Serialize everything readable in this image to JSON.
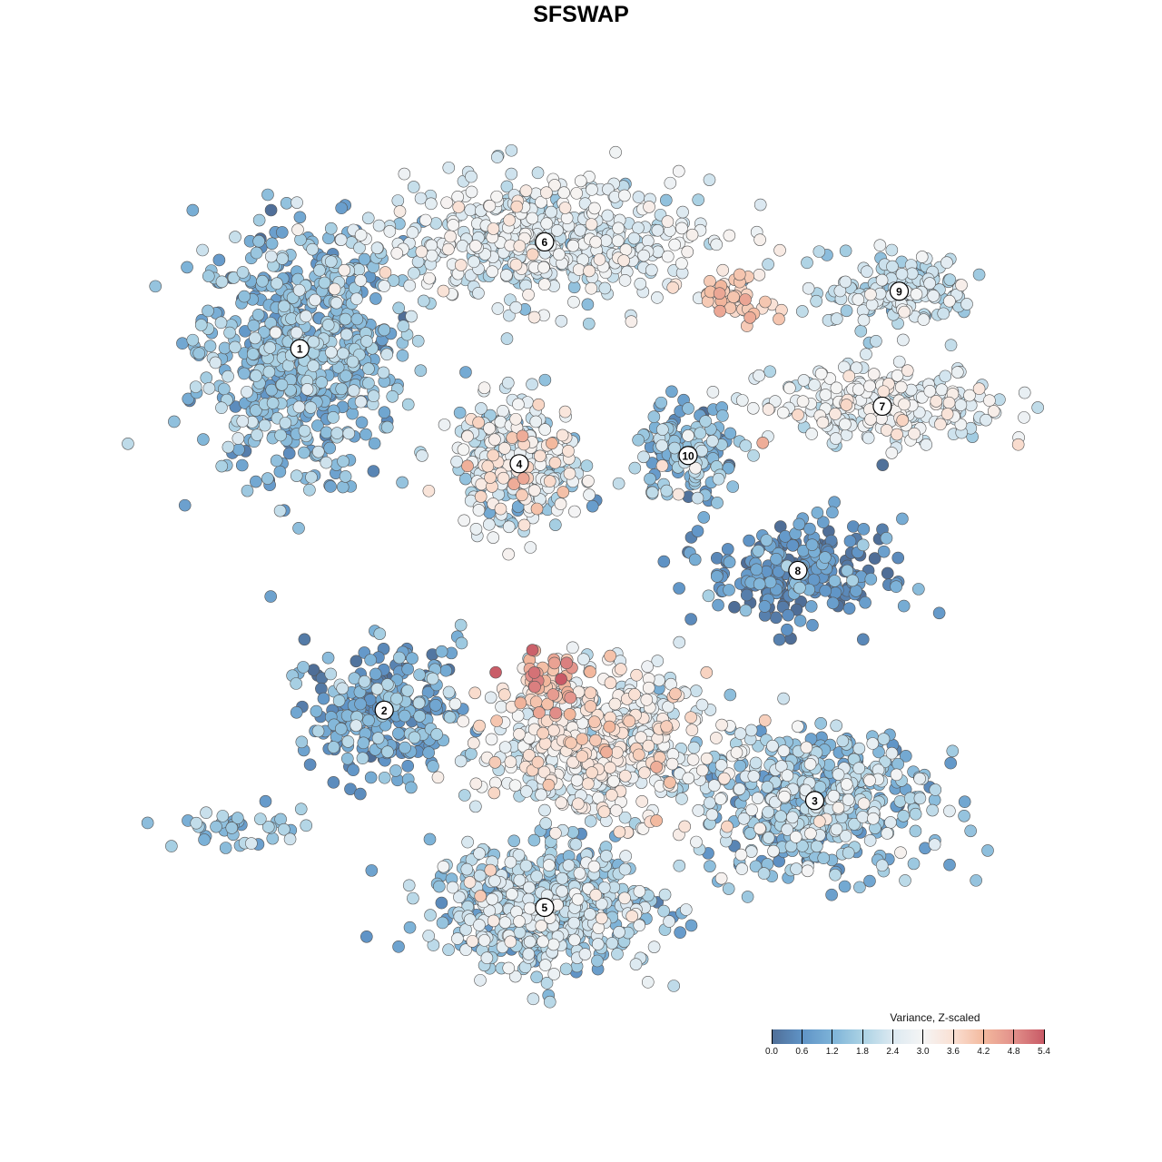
{
  "chart_data": {
    "type": "scatter",
    "title": "SFSWAP",
    "xlabel": "",
    "ylabel": "",
    "axes_visible": false,
    "grid": false,
    "xlim": [
      -50,
      50
    ],
    "ylim": [
      -50,
      50
    ],
    "color_scale": {
      "title": "Variance, Z-scaled",
      "range": [
        0.0,
        5.4
      ],
      "ticks": [
        "0.0",
        "0.6",
        "1.2",
        "1.8",
        "2.4",
        "3.0",
        "3.6",
        "4.2",
        "4.8",
        "5.4"
      ],
      "colors": [
        "#4f6e97",
        "#5f93c6",
        "#7db3d8",
        "#abd2e4",
        "#dce9f1",
        "#f5f5f5",
        "#fae0d3",
        "#f3b99e",
        "#e2908a",
        "#c85a66"
      ],
      "placement": "bottom-right"
    },
    "clusters": [
      {
        "label": "1",
        "x": -36,
        "y": 28,
        "sx": 8,
        "sy": 10,
        "n": 650,
        "mean": 1.3,
        "sd": 0.5
      },
      {
        "label": "6",
        "x": -7,
        "y": 41,
        "sx": 13,
        "sy": 5,
        "n": 520,
        "mean": 2.4,
        "sd": 0.5
      },
      {
        "label": "9",
        "x": 35,
        "y": 35,
        "sx": 6,
        "sy": 3,
        "n": 160,
        "mean": 2.1,
        "sd": 0.4
      },
      {
        "label": "7",
        "x": 33,
        "y": 21,
        "sx": 9,
        "sy": 3,
        "n": 260,
        "mean": 2.6,
        "sd": 0.5
      },
      {
        "label": "4",
        "x": -10,
        "y": 14,
        "sx": 5,
        "sy": 5,
        "n": 300,
        "mean": 2.4,
        "sd": 0.8
      },
      {
        "label": "10",
        "x": 10,
        "y": 15,
        "sx": 4,
        "sy": 4,
        "n": 140,
        "mean": 1.3,
        "sd": 0.7
      },
      {
        "label": "8",
        "x": 23,
        "y": 1,
        "sx": 7,
        "sy": 4,
        "n": 260,
        "mean": 0.5,
        "sd": 0.5
      },
      {
        "label": "2",
        "x": -26,
        "y": -16,
        "sx": 6,
        "sy": 5,
        "n": 260,
        "mean": 0.9,
        "sd": 0.6
      },
      {
        "label": "3",
        "x": 25,
        "y": -27,
        "sx": 9,
        "sy": 6,
        "n": 520,
        "mean": 1.6,
        "sd": 0.7
      },
      {
        "label": "5",
        "x": -7,
        "y": -40,
        "sx": 9,
        "sy": 5,
        "n": 560,
        "mean": 1.8,
        "sd": 0.6
      },
      {
        "label": "",
        "x": -1,
        "y": -20,
        "sx": 9,
        "sy": 6,
        "n": 600,
        "mean": 2.8,
        "sd": 0.6
      },
      {
        "label": "",
        "x": -7,
        "y": -12,
        "sx": 2.5,
        "sy": 2.5,
        "n": 40,
        "mean": 4.4,
        "sd": 0.5
      },
      {
        "label": "",
        "x": 16,
        "y": 34,
        "sx": 3,
        "sy": 2,
        "n": 50,
        "mean": 3.9,
        "sd": 0.3
      },
      {
        "label": "",
        "x": -43,
        "y": -30,
        "sx": 5,
        "sy": 2,
        "n": 40,
        "mean": 1.4,
        "sd": 0.5
      }
    ]
  }
}
